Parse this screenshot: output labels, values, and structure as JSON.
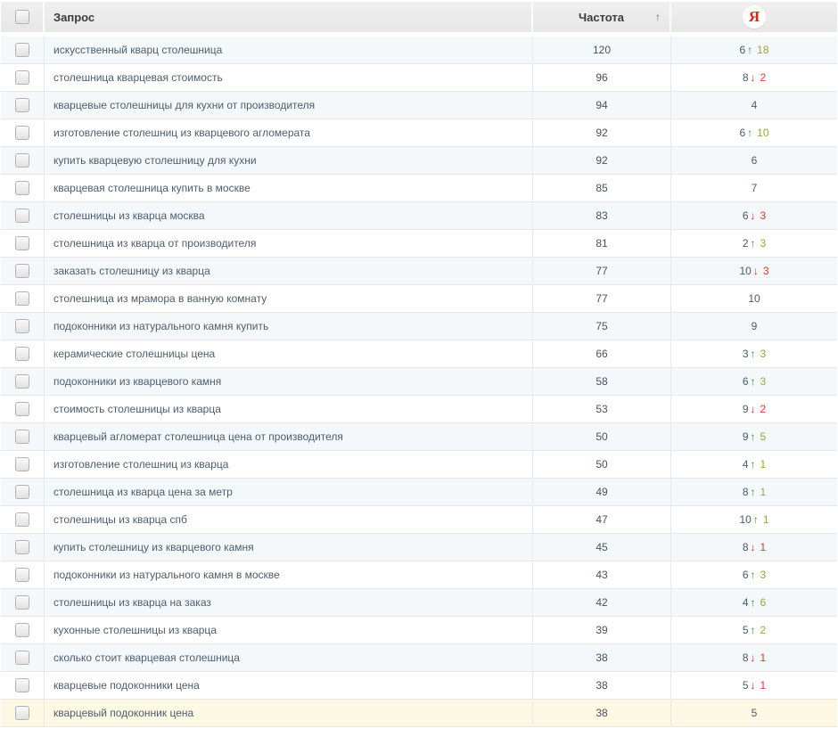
{
  "table": {
    "header": {
      "query_label": "Запрос",
      "frequency_label": "Частота",
      "engine_label": "Я"
    },
    "glyphs": {
      "sort_up_arrow": "↑",
      "up_arrow": "↑",
      "down_arrow": "↓"
    },
    "colors": {
      "header_bg": "#ebebeb",
      "stripe_bg": "#f4f8fb",
      "highlight_bg": "#fcf8e3",
      "query_text": "#4d5d6c",
      "up_arrow": "#27962a",
      "up_delta": "#9aa63c",
      "down_arrow": "#c92a21",
      "down_delta": "#d53a2f",
      "yandex_red": "#d6281a"
    },
    "rows": [
      {
        "query": "искусственный кварц столешница",
        "frequency": "120",
        "position": "6",
        "dir": "up",
        "delta": "18"
      },
      {
        "query": "столешница кварцевая стоимость",
        "frequency": "96",
        "position": "8",
        "dir": "down",
        "delta": "2"
      },
      {
        "query": "кварцевые столешницы для кухни от производителя",
        "frequency": "94",
        "position": "4",
        "dir": "",
        "delta": ""
      },
      {
        "query": "изготовление столешниц из кварцевого агломерата",
        "frequency": "92",
        "position": "6",
        "dir": "up",
        "delta": "10"
      },
      {
        "query": "купить кварцевую столешницу для кухни",
        "frequency": "92",
        "position": "6",
        "dir": "",
        "delta": ""
      },
      {
        "query": "кварцевая столешница купить в москве",
        "frequency": "85",
        "position": "7",
        "dir": "",
        "delta": ""
      },
      {
        "query": "столешницы из кварца москва",
        "frequency": "83",
        "position": "6",
        "dir": "down",
        "delta": "3"
      },
      {
        "query": "столешница из кварца от производителя",
        "frequency": "81",
        "position": "2",
        "dir": "up",
        "delta": "3"
      },
      {
        "query": "заказать столешницу из кварца",
        "frequency": "77",
        "position": "10",
        "dir": "down",
        "delta": "3"
      },
      {
        "query": "столешница из мрамора в ванную комнату",
        "frequency": "77",
        "position": "10",
        "dir": "",
        "delta": ""
      },
      {
        "query": "подоконники из натурального камня купить",
        "frequency": "75",
        "position": "9",
        "dir": "",
        "delta": ""
      },
      {
        "query": "керамические столешницы цена",
        "frequency": "66",
        "position": "3",
        "dir": "up",
        "delta": "3"
      },
      {
        "query": "подоконники из кварцевого камня",
        "frequency": "58",
        "position": "6",
        "dir": "up",
        "delta": "3"
      },
      {
        "query": "стоимость столешницы из кварца",
        "frequency": "53",
        "position": "9",
        "dir": "down",
        "delta": "2"
      },
      {
        "query": "кварцевый агломерат столешница цена от производителя",
        "frequency": "50",
        "position": "9",
        "dir": "up",
        "delta": "5"
      },
      {
        "query": "изготовление столешниц из кварца",
        "frequency": "50",
        "position": "4",
        "dir": "up",
        "delta": "1"
      },
      {
        "query": "столешница из кварца цена за метр",
        "frequency": "49",
        "position": "8",
        "dir": "up",
        "delta": "1"
      },
      {
        "query": "столешницы из кварца спб",
        "frequency": "47",
        "position": "10",
        "dir": "up",
        "delta": "1"
      },
      {
        "query": "купить столешницу из кварцевого камня",
        "frequency": "45",
        "position": "8",
        "dir": "down",
        "delta": "1"
      },
      {
        "query": "подоконники из натурального камня в москве",
        "frequency": "43",
        "position": "6",
        "dir": "up",
        "delta": "3"
      },
      {
        "query": "столешницы из кварца на заказ",
        "frequency": "42",
        "position": "4",
        "dir": "up",
        "delta": "6"
      },
      {
        "query": "кухонные столешницы из кварца",
        "frequency": "39",
        "position": "5",
        "dir": "up",
        "delta": "2"
      },
      {
        "query": "сколько стоит кварцевая столешница",
        "frequency": "38",
        "position": "8",
        "dir": "down",
        "delta": "1"
      },
      {
        "query": "кварцевые подоконники цена",
        "frequency": "38",
        "position": "5",
        "dir": "down",
        "delta": "1"
      },
      {
        "query": "кварцевый подоконник цена",
        "frequency": "38",
        "position": "5",
        "dir": "",
        "delta": "",
        "highlighted": true
      }
    ]
  }
}
